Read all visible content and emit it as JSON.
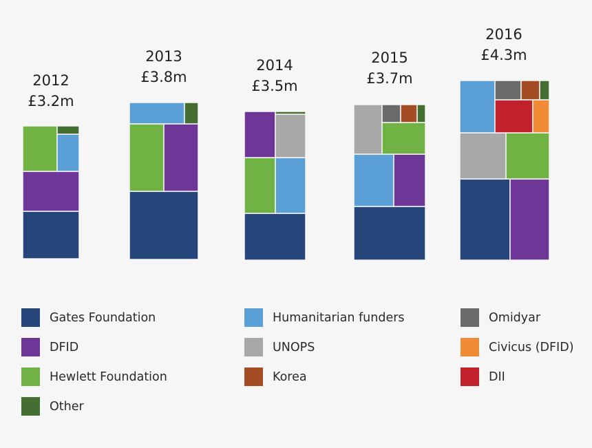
{
  "chart_data": {
    "type": "treemap-stacked",
    "title": "",
    "columns": [
      {
        "year": "2012",
        "total": "£3.2m"
      },
      {
        "year": "2013",
        "total": "£3.8m"
      },
      {
        "year": "2014",
        "total": "£3.5m"
      },
      {
        "year": "2015",
        "total": "£3.7m"
      },
      {
        "year": "2016",
        "total": "£4.3m"
      }
    ],
    "series": [
      {
        "key": "gates",
        "name": "Gates Foundation",
        "color": "#26457a"
      },
      {
        "key": "dfid",
        "name": "DFID",
        "color": "#6e3797"
      },
      {
        "key": "hewlett",
        "name": "Hewlett Foundation",
        "color": "#70b244"
      },
      {
        "key": "other",
        "name": "Other",
        "color": "#456f32"
      },
      {
        "key": "humanitarian",
        "name": "Humanitarian funders",
        "color": "#5a9fd6"
      },
      {
        "key": "unops",
        "name": "UNOPS",
        "color": "#a8a8a8"
      },
      {
        "key": "korea",
        "name": "Korea",
        "color": "#a44d24"
      },
      {
        "key": "omidyar",
        "name": "Omidyar",
        "color": "#6a6a6a"
      },
      {
        "key": "civicus",
        "name": "Civicus (DFID)",
        "color": "#f18a34"
      },
      {
        "key": "dii",
        "name": "DII",
        "color": "#c0212a"
      }
    ]
  }
}
